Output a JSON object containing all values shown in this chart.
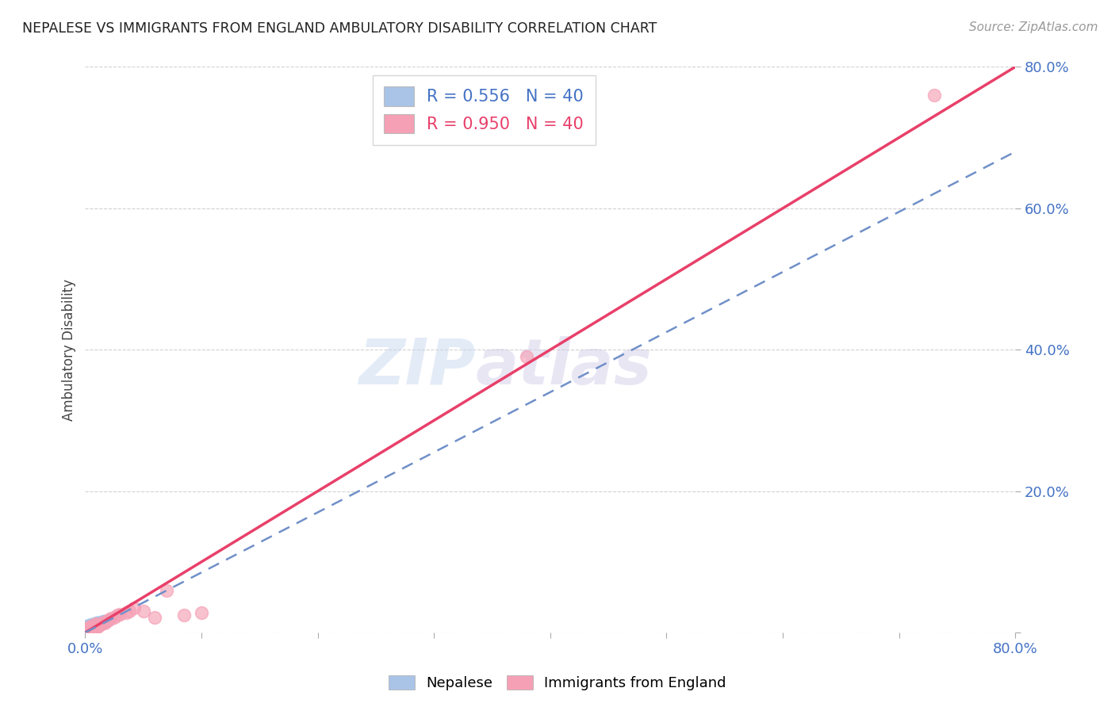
{
  "title": "NEPALESE VS IMMIGRANTS FROM ENGLAND AMBULATORY DISABILITY CORRELATION CHART",
  "source": "Source: ZipAtlas.com",
  "ylabel": "Ambulatory Disability",
  "xlim": [
    0,
    0.8
  ],
  "ylim": [
    0,
    0.8
  ],
  "xticks": [
    0.0,
    0.1,
    0.2,
    0.3,
    0.4,
    0.5,
    0.6,
    0.7,
    0.8
  ],
  "xtick_labels": [
    "0.0%",
    "",
    "",
    "",
    "",
    "",
    "",
    "",
    "80.0%"
  ],
  "yticks": [
    0.0,
    0.2,
    0.4,
    0.6,
    0.8
  ],
  "ytick_labels": [
    "",
    "20.0%",
    "40.0%",
    "60.0%",
    "80.0%"
  ],
  "legend_labels": [
    "Nepalese",
    "Immigrants from England"
  ],
  "nepalese_color": "#aac4e8",
  "england_color": "#f5a0b5",
  "nepalese_line_color": "#7090c8",
  "england_line_color": "#e8406a",
  "nepalese_R": 0.556,
  "nepalese_N": 40,
  "england_R": 0.95,
  "england_N": 40,
  "watermark_zip": "ZIP",
  "watermark_atlas": "atlas",
  "background_color": "#ffffff",
  "grid_color": "#cccccc",
  "title_color": "#222222",
  "axis_label_color": "#444444",
  "tick_color": "#4472c4",
  "nepalese_points_x": [
    0.001,
    0.001,
    0.001,
    0.002,
    0.002,
    0.002,
    0.002,
    0.003,
    0.003,
    0.003,
    0.003,
    0.003,
    0.004,
    0.004,
    0.004,
    0.004,
    0.005,
    0.005,
    0.005,
    0.006,
    0.006,
    0.006,
    0.006,
    0.007,
    0.007,
    0.007,
    0.008,
    0.008,
    0.009,
    0.009,
    0.01,
    0.01,
    0.011,
    0.012,
    0.013,
    0.014,
    0.015,
    0.016,
    0.018,
    0.02
  ],
  "nepalese_points_y": [
    0.003,
    0.005,
    0.009,
    0.003,
    0.005,
    0.007,
    0.01,
    0.003,
    0.005,
    0.007,
    0.008,
    0.01,
    0.004,
    0.006,
    0.008,
    0.011,
    0.005,
    0.007,
    0.009,
    0.006,
    0.008,
    0.01,
    0.012,
    0.009,
    0.011,
    0.013,
    0.01,
    0.013,
    0.011,
    0.014,
    0.012,
    0.015,
    0.013,
    0.015,
    0.014,
    0.016,
    0.015,
    0.017,
    0.016,
    0.018
  ],
  "england_points_x": [
    0.001,
    0.001,
    0.002,
    0.002,
    0.003,
    0.003,
    0.004,
    0.004,
    0.005,
    0.005,
    0.005,
    0.006,
    0.007,
    0.007,
    0.008,
    0.009,
    0.009,
    0.01,
    0.011,
    0.012,
    0.013,
    0.014,
    0.016,
    0.017,
    0.018,
    0.02,
    0.022,
    0.025,
    0.028,
    0.03,
    0.035,
    0.038,
    0.042,
    0.05,
    0.06,
    0.07,
    0.085,
    0.1,
    0.38,
    0.73
  ],
  "england_points_y": [
    0.002,
    0.004,
    0.003,
    0.006,
    0.004,
    0.007,
    0.005,
    0.008,
    0.003,
    0.006,
    0.009,
    0.007,
    0.005,
    0.01,
    0.008,
    0.007,
    0.012,
    0.01,
    0.009,
    0.011,
    0.012,
    0.013,
    0.015,
    0.014,
    0.016,
    0.018,
    0.02,
    0.022,
    0.025,
    0.026,
    0.028,
    0.03,
    0.035,
    0.03,
    0.022,
    0.06,
    0.025,
    0.028,
    0.39,
    0.76
  ],
  "nepalese_line_x": [
    0.0,
    0.8
  ],
  "nepalese_line_y": [
    0.0,
    0.68
  ],
  "england_line_x": [
    0.0,
    0.8
  ],
  "england_line_y": [
    0.0,
    0.8
  ]
}
